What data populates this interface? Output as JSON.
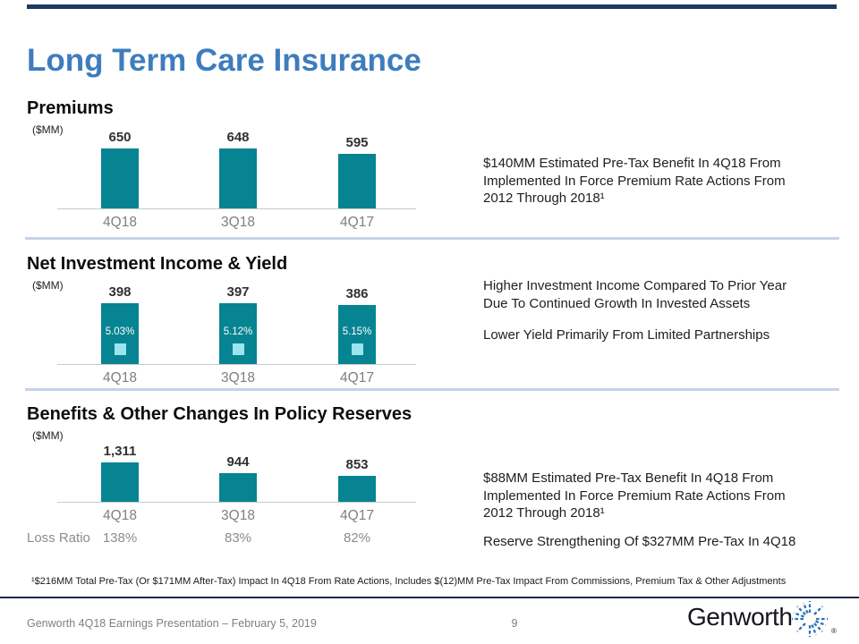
{
  "slide": {
    "title": "Long Term Care Insurance",
    "page_number": "9",
    "footer_text": "Genworth 4Q18 Earnings Presentation – February 5, 2019",
    "footnote": "¹$216MM Total Pre-Tax (Or $171MM After-Tax) Impact In 4Q18 From Rate Actions, Includes $(12)MM Pre-Tax Impact From Commissions, Premium Tax & Other Adjustments",
    "logo": {
      "text": "Genworth",
      "registered": "®",
      "icon": "starburst-icon"
    },
    "colors": {
      "title_blue": "#3E7CBE",
      "bar_teal": "#068492",
      "yield_marker_cyan": "#9AE5EE",
      "divider_blue": "#C5D3E8",
      "navy_rule": "#1F3864",
      "gray_text": "#7F7F7F",
      "logo_blue": "#2E74B8"
    }
  },
  "sections": [
    {
      "heading": "Premiums",
      "unit": "($MM)",
      "notes": [
        "$140MM Estimated Pre-Tax Benefit In 4Q18 From\nImplemented In Force Premium Rate Actions From\n2012 Through 2018¹"
      ]
    },
    {
      "heading": "Net Investment Income & Yield",
      "unit": "($MM)",
      "notes": [
        "Higher Investment Income Compared To Prior Year\nDue To Continued Growth In Invested Assets",
        "Lower Yield Primarily From Limited Partnerships"
      ]
    },
    {
      "heading": "Benefits & Other Changes In Policy Reserves",
      "unit": "($MM)",
      "notes": [
        "$88MM Estimated Pre-Tax Benefit In 4Q18 From\nImplemented In Force Premium Rate Actions From\n2012 Through 2018¹",
        "Reserve Strengthening Of $327MM Pre-Tax In 4Q18"
      ]
    }
  ],
  "chart_data": [
    {
      "type": "bar",
      "title": "Premiums",
      "ylabel": "$MM",
      "categories": [
        "4Q18",
        "3Q18",
        "4Q17"
      ],
      "values": [
        650,
        648,
        595
      ],
      "value_labels": [
        "650",
        "648",
        "595"
      ],
      "ylim": [
        0,
        700
      ],
      "grid": false,
      "legend": "none",
      "bar_color": "#068492"
    },
    {
      "type": "bar",
      "title": "Net Investment Income & Yield",
      "ylabel": "$MM",
      "categories": [
        "4Q18",
        "3Q18",
        "4Q17"
      ],
      "values": [
        398,
        397,
        386
      ],
      "value_labels": [
        "398",
        "397",
        "386"
      ],
      "yields": [
        "5.03%",
        "5.12%",
        "5.15%"
      ],
      "ylim": [
        0,
        420
      ],
      "grid": false,
      "legend": "none",
      "bar_color": "#068492"
    },
    {
      "type": "bar",
      "title": "Benefits & Other Changes In Policy Reserves",
      "ylabel": "$MM",
      "categories": [
        "4Q18",
        "3Q18",
        "4Q17"
      ],
      "values": [
        1311,
        944,
        853
      ],
      "value_labels": [
        "1,311",
        "944",
        "853"
      ],
      "loss_ratio": {
        "label": "Loss Ratio",
        "values": [
          "138%",
          "83%",
          "82%"
        ]
      },
      "ylim": [
        0,
        1400
      ],
      "grid": false,
      "legend": "none",
      "bar_color": "#068492"
    }
  ]
}
